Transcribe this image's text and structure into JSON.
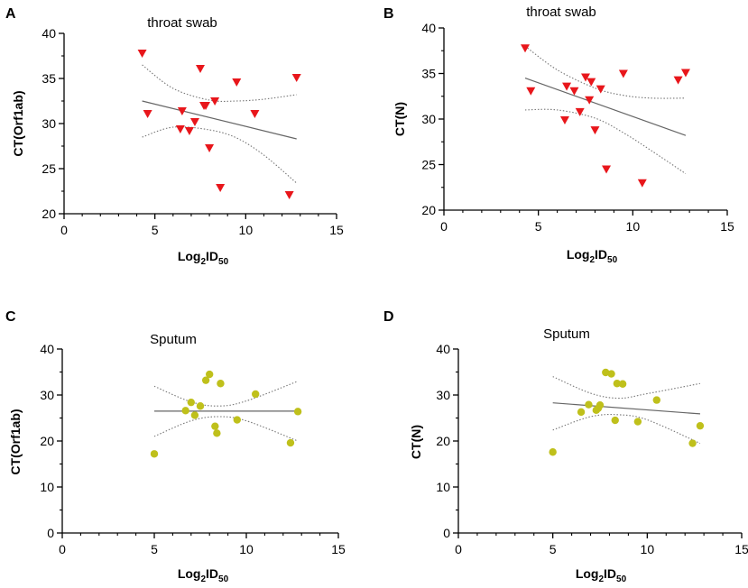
{
  "chart_data": [
    {
      "type": "scatter",
      "panel": "A",
      "title": "throat swab",
      "xlabel": "Log2ID50",
      "xlabel_main": "Log",
      "xlabel_sub1": "2",
      "xlabel_mid": "ID",
      "xlabel_sub2": "50",
      "ylabel": "CT(Orf1ab)",
      "xlim": [
        0,
        15
      ],
      "ylim": [
        20,
        40
      ],
      "xticks": [
        0,
        5,
        10,
        15
      ],
      "yticks": [
        20,
        25,
        30,
        35,
        40
      ],
      "marker": "triangle-down",
      "color": "#e8161b",
      "x": [
        4.3,
        4.6,
        6.4,
        6.5,
        6.9,
        7.2,
        7.5,
        7.7,
        7.8,
        8.0,
        8.3,
        8.6,
        9.5,
        10.5,
        12.4,
        12.8
      ],
      "y": [
        37.8,
        31.1,
        29.4,
        31.4,
        29.2,
        30.2,
        36.1,
        32.0,
        32.0,
        27.3,
        32.5,
        22.9,
        34.6,
        31.1,
        22.1,
        35.1
      ],
      "fit": {
        "x": [
          4.3,
          12.8
        ],
        "y": [
          32.5,
          28.3
        ]
      },
      "ci_upper": {
        "x": [
          4.3,
          6,
          8,
          9.5,
          11,
          12.8
        ],
        "y": [
          36.5,
          33.9,
          32.6,
          32.5,
          32.7,
          33.2
        ]
      },
      "ci_lower": {
        "x": [
          4.3,
          6,
          8,
          9.5,
          11,
          12.8
        ],
        "y": [
          28.5,
          29.6,
          29.3,
          28.4,
          26.5,
          23.4
        ]
      }
    },
    {
      "type": "scatter",
      "panel": "B",
      "title": "throat swab",
      "xlabel": "Log2ID50",
      "xlabel_main": "Log",
      "xlabel_sub1": "2",
      "xlabel_mid": "ID",
      "xlabel_sub2": "50",
      "ylabel": "CT(N)",
      "xlim": [
        0,
        15
      ],
      "ylim": [
        20,
        40
      ],
      "xticks": [
        0,
        5,
        10,
        15
      ],
      "yticks": [
        20,
        25,
        30,
        35,
        40
      ],
      "marker": "triangle-down",
      "color": "#e8161b",
      "x": [
        4.3,
        4.6,
        6.4,
        6.5,
        6.9,
        7.2,
        7.5,
        7.7,
        7.8,
        8.0,
        8.3,
        8.6,
        9.5,
        10.5,
        12.4,
        12.8
      ],
      "y": [
        37.8,
        33.1,
        29.9,
        33.6,
        33.1,
        30.8,
        34.6,
        32.1,
        34.1,
        28.8,
        33.3,
        24.5,
        35.0,
        23.0,
        34.3,
        35.1
      ],
      "fit": {
        "x": [
          4.3,
          12.8
        ],
        "y": [
          34.5,
          28.2
        ]
      },
      "ci_upper": {
        "x": [
          4.3,
          6,
          8,
          9.5,
          11,
          12.8
        ],
        "y": [
          38.0,
          35.4,
          33.4,
          32.6,
          32.3,
          32.3
        ]
      },
      "ci_lower": {
        "x": [
          4.3,
          6,
          8,
          9.5,
          11,
          12.8
        ],
        "y": [
          31.0,
          31.0,
          30.1,
          28.5,
          26.5,
          24.0
        ]
      }
    },
    {
      "type": "scatter",
      "panel": "C",
      "title": "Sputum",
      "xlabel": "Log2ID50",
      "xlabel_main": "Log",
      "xlabel_sub1": "2",
      "xlabel_mid": "ID",
      "xlabel_sub2": "50",
      "ylabel": "CT(Orf1ab)",
      "xlim": [
        0,
        15
      ],
      "ylim": [
        0,
        40
      ],
      "xticks": [
        0,
        5,
        10,
        15
      ],
      "yticks": [
        0,
        10,
        20,
        30,
        40
      ],
      "marker": "circle",
      "color": "#bfc01b",
      "x": [
        5.0,
        6.7,
        7.0,
        7.2,
        7.5,
        7.8,
        8.0,
        8.3,
        8.4,
        8.6,
        9.5,
        10.5,
        12.4,
        12.8
      ],
      "y": [
        17.2,
        26.6,
        28.4,
        25.6,
        27.6,
        33.2,
        34.5,
        23.2,
        21.7,
        32.5,
        24.6,
        30.2,
        19.6,
        26.4
      ],
      "fit": {
        "x": [
          5.0,
          12.8
        ],
        "y": [
          26.5,
          26.5
        ]
      },
      "ci_upper": {
        "x": [
          5.0,
          7,
          8.5,
          10,
          12.8
        ],
        "y": [
          31.9,
          28.5,
          27.6,
          28.7,
          33.0
        ]
      },
      "ci_lower": {
        "x": [
          5.0,
          7,
          8.5,
          10,
          12.8
        ],
        "y": [
          21.0,
          24.4,
          25.3,
          24.4,
          20.0
        ]
      }
    },
    {
      "type": "scatter",
      "panel": "D",
      "title": "Sputum",
      "xlabel": "Log2ID50",
      "xlabel_main": "Log",
      "xlabel_sub1": "2",
      "xlabel_mid": "ID",
      "xlabel_sub2": "50",
      "ylabel": "CT(N)",
      "xlim": [
        0,
        15
      ],
      "ylim": [
        0,
        40
      ],
      "xticks": [
        0,
        5,
        10,
        15
      ],
      "yticks": [
        0,
        10,
        20,
        30,
        40
      ],
      "marker": "circle",
      "color": "#bfc01b",
      "x": [
        5.0,
        6.5,
        6.9,
        7.3,
        7.4,
        7.5,
        7.8,
        8.1,
        8.3,
        8.4,
        8.7,
        9.5,
        10.5,
        12.4,
        12.8
      ],
      "y": [
        17.6,
        26.3,
        27.9,
        26.7,
        27.1,
        27.8,
        34.9,
        34.6,
        24.5,
        32.5,
        32.4,
        24.2,
        28.9,
        19.5,
        23.3
      ],
      "fit": {
        "x": [
          5.0,
          12.8
        ],
        "y": [
          28.3,
          25.9
        ]
      },
      "ci_upper": {
        "x": [
          5.0,
          7,
          8.5,
          10,
          12.8
        ],
        "y": [
          34.0,
          30.4,
          29.3,
          30.3,
          32.5
        ]
      },
      "ci_lower": {
        "x": [
          5.0,
          7,
          8.5,
          10,
          12.8
        ],
        "y": [
          22.4,
          25.3,
          25.7,
          24.6,
          19.5
        ]
      }
    }
  ]
}
